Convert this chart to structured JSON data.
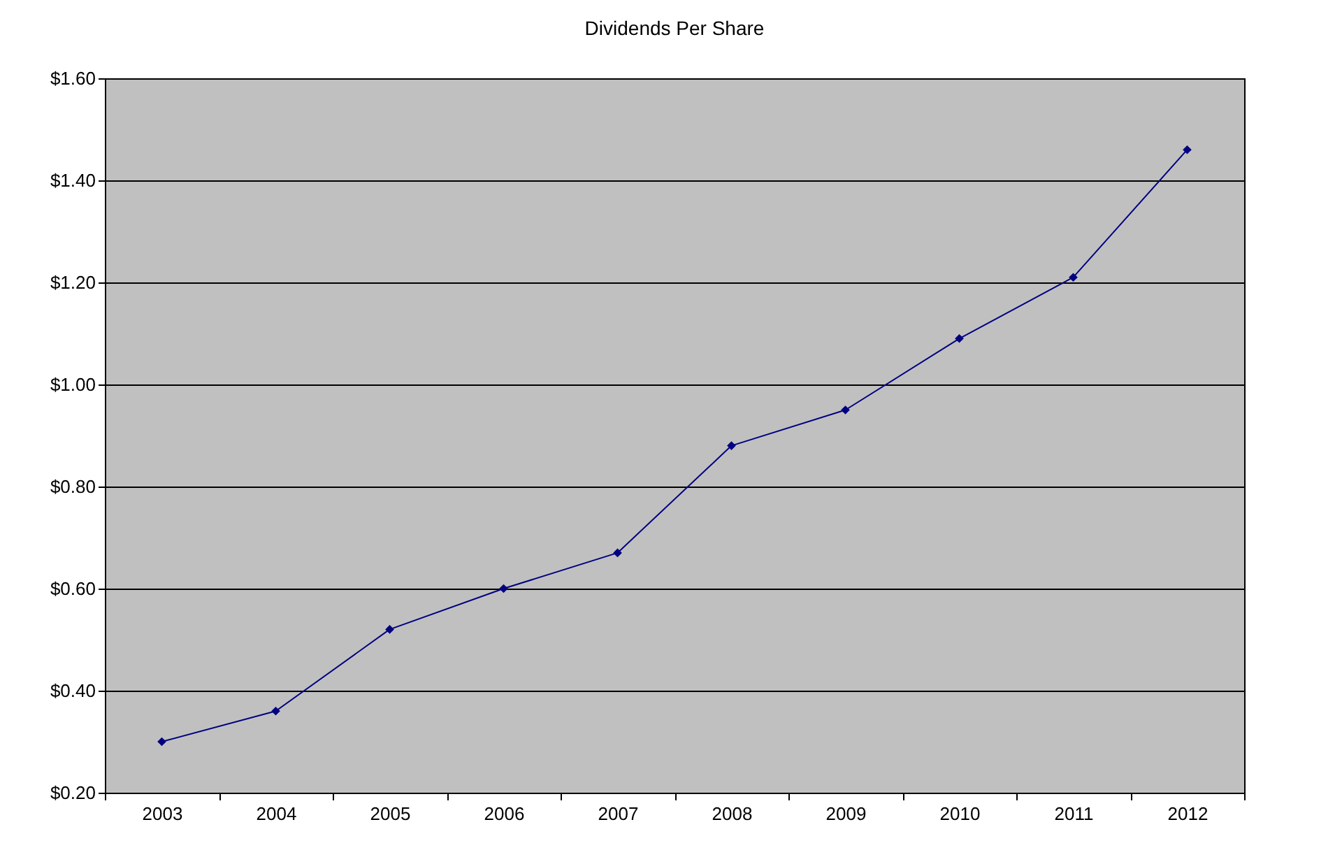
{
  "chart_data": {
    "type": "line",
    "title": "Dividends Per Share",
    "categories": [
      "2003",
      "2004",
      "2005",
      "2006",
      "2007",
      "2008",
      "2009",
      "2010",
      "2011",
      "2012"
    ],
    "series": [
      {
        "color": "#000080",
        "values": [
          0.3,
          0.36,
          0.52,
          0.6,
          0.67,
          0.88,
          0.95,
          1.09,
          1.21,
          1.46
        ]
      }
    ],
    "ylim": [
      0.2,
      1.6
    ],
    "yticks": [
      {
        "value": 0.2,
        "label": "$0.20"
      },
      {
        "value": 0.4,
        "label": "$0.40"
      },
      {
        "value": 0.6,
        "label": "$0.60"
      },
      {
        "value": 0.8,
        "label": "$0.80"
      },
      {
        "value": 1.0,
        "label": "$1.00"
      },
      {
        "value": 1.2,
        "label": "$1.20"
      },
      {
        "value": 1.4,
        "label": "$1.40"
      },
      {
        "value": 1.6,
        "label": "$1.60"
      }
    ],
    "grid": "y",
    "marker": "diamond",
    "line_style": "solid",
    "legend": false
  }
}
